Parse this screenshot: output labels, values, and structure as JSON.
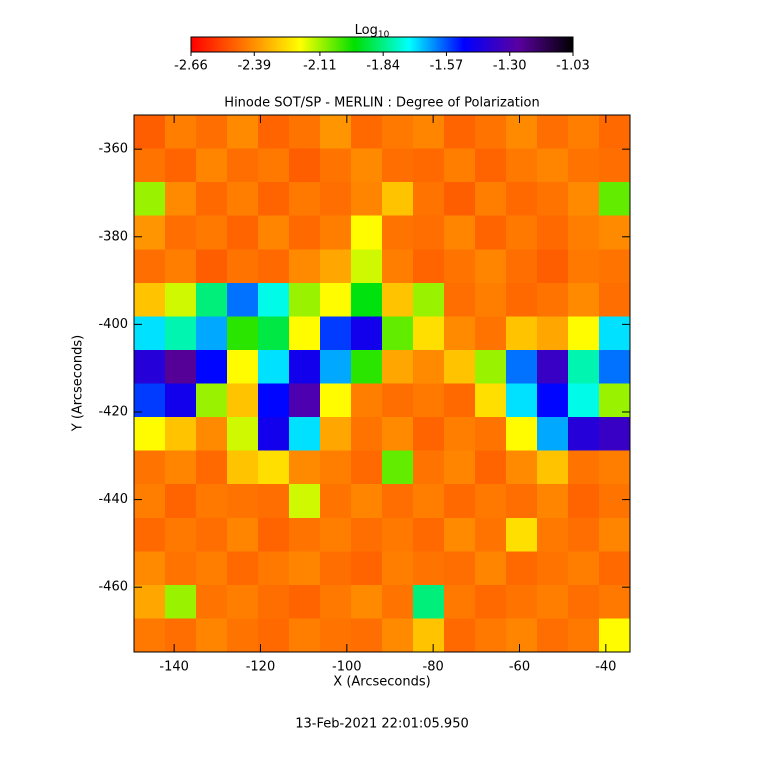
{
  "chart_data": {
    "type": "heatmap",
    "title": "Hinode SOT/SP - MERLIN : Degree of Polarization",
    "xlabel": "X (Arcseconds)",
    "ylabel": "Y (Arcseconds)",
    "date": "13-Feb-2021 22:01:05.950",
    "colorbar_label": "Log",
    "colorbar_label_sub": "10",
    "xlim": [
      -149.3,
      -34.4
    ],
    "ylim": [
      -474.8,
      -352.2
    ],
    "xticks": [
      -140,
      -120,
      -100,
      -80,
      -60,
      -40
    ],
    "yticks": [
      -360,
      -380,
      -400,
      -420,
      -440,
      -460
    ],
    "zlim": [
      -2.66,
      -1.03
    ],
    "zticks": [
      -2.66,
      -2.39,
      -2.11,
      -1.84,
      -1.57,
      {
        "value": -1.3,
        "label": "-1.30"
      },
      -1.03
    ],
    "colormap": [
      "#ff0000",
      "#ff7a00",
      "#ffff00",
      "#00e000",
      "#00ffff",
      "#0000ff",
      "#5a00a0",
      "#000000"
    ],
    "z": [
      [
        -2.48,
        -2.42,
        -2.45,
        -2.4,
        -2.47,
        -2.44,
        -2.38,
        -2.46,
        -2.43,
        -2.41,
        -2.47,
        -2.44,
        -2.4,
        -2.45,
        -2.42,
        -2.46
      ],
      [
        -2.44,
        -2.47,
        -2.41,
        -2.45,
        -2.43,
        -2.48,
        -2.44,
        -2.4,
        -2.45,
        -2.46,
        -2.42,
        -2.47,
        -2.43,
        -2.41,
        -2.44,
        -2.45
      ],
      [
        -2.1,
        -2.4,
        -2.46,
        -2.42,
        -2.47,
        -2.43,
        -2.45,
        -2.41,
        -2.3,
        -2.44,
        -2.48,
        -2.42,
        -2.46,
        -2.44,
        -2.4,
        -2.05
      ],
      [
        -2.38,
        -2.45,
        -2.43,
        -2.47,
        -2.41,
        -2.46,
        -2.42,
        -2.2,
        -2.44,
        -2.45,
        -2.41,
        -2.47,
        -2.43,
        -2.46,
        -2.42,
        -2.4
      ],
      [
        -2.45,
        -2.42,
        -2.48,
        -2.44,
        -2.46,
        -2.4,
        -2.35,
        -2.15,
        -2.42,
        -2.47,
        -2.44,
        -2.41,
        -2.45,
        -2.48,
        -2.43,
        -2.44
      ],
      [
        -2.3,
        -2.15,
        -1.85,
        -1.6,
        -1.75,
        -2.1,
        -2.2,
        -1.95,
        -2.3,
        -2.1,
        -2.45,
        -2.42,
        -2.46,
        -2.44,
        -2.4,
        -2.45
      ],
      [
        -1.7,
        -1.8,
        -1.65,
        -2.0,
        -1.9,
        -2.2,
        -1.55,
        -1.45,
        -2.05,
        -2.25,
        -2.4,
        -2.44,
        -2.3,
        -2.35,
        -2.2,
        -1.7
      ],
      [
        -1.4,
        -1.25,
        -1.5,
        -2.2,
        -1.7,
        -1.45,
        -1.65,
        -2.0,
        -2.35,
        -2.4,
        -2.3,
        -2.1,
        -1.6,
        -1.35,
        -1.8,
        -1.6
      ],
      [
        -1.55,
        -1.45,
        -2.1,
        -2.3,
        -1.5,
        -1.3,
        -2.2,
        -2.42,
        -2.45,
        -2.43,
        -2.46,
        -2.25,
        -1.7,
        -1.5,
        -1.75,
        -2.1
      ],
      [
        -2.2,
        -2.3,
        -2.4,
        -2.15,
        -1.45,
        -1.7,
        -2.35,
        -2.44,
        -2.4,
        -2.47,
        -2.42,
        -2.44,
        -2.2,
        -1.65,
        -1.4,
        -1.35
      ],
      [
        -2.44,
        -2.41,
        -2.46,
        -2.3,
        -2.25,
        -2.4,
        -2.42,
        -2.46,
        -2.05,
        -2.44,
        -2.41,
        -2.47,
        -2.4,
        -2.3,
        -2.44,
        -2.42
      ],
      [
        -2.42,
        -2.47,
        -2.43,
        -2.44,
        -2.45,
        -2.15,
        -2.44,
        -2.41,
        -2.45,
        -2.42,
        -2.46,
        -2.43,
        -2.45,
        -2.41,
        -2.47,
        -2.44
      ],
      [
        -2.46,
        -2.43,
        -2.45,
        -2.41,
        -2.47,
        -2.44,
        -2.42,
        -2.45,
        -2.43,
        -2.46,
        -2.4,
        -2.44,
        -2.25,
        -2.43,
        -2.45,
        -2.41
      ],
      [
        -2.4,
        -2.44,
        -2.42,
        -2.46,
        -2.43,
        -2.41,
        -2.45,
        -2.47,
        -2.42,
        -2.44,
        -2.45,
        -2.41,
        -2.46,
        -2.44,
        -2.42,
        -2.46
      ],
      [
        -2.35,
        -2.1,
        -2.44,
        -2.42,
        -2.45,
        -2.47,
        -2.43,
        -2.4,
        -2.44,
        -1.85,
        -2.43,
        -2.46,
        -2.44,
        -2.42,
        -2.45,
        -2.43
      ],
      [
        -2.43,
        -2.45,
        -2.41,
        -2.44,
        -2.46,
        -2.42,
        -2.44,
        -2.45,
        -2.4,
        -2.3,
        -2.46,
        -2.43,
        -2.41,
        -2.45,
        -2.43,
        -2.2
      ]
    ]
  }
}
